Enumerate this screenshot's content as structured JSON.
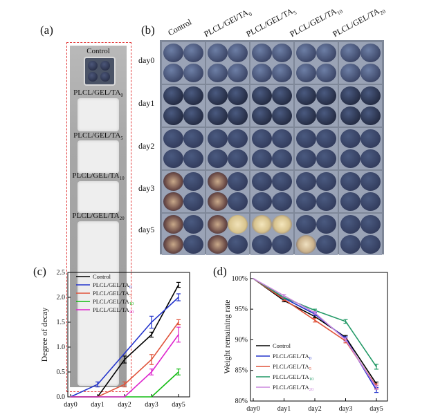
{
  "panel_a": {
    "letter": "(a)",
    "labels": [
      {
        "main": "Control",
        "sub": ""
      },
      {
        "main": "PLCL/GEL/TA",
        "sub": "0"
      },
      {
        "main": "PLCL/GEL/TA",
        "sub": "5"
      },
      {
        "main": "PLCL/GEL/TA",
        "sub": "10"
      },
      {
        "main": "PLCL/GEL/TA",
        "sub": "20"
      }
    ]
  },
  "panel_b": {
    "letter": "(b)",
    "columns": [
      {
        "main": "Control",
        "sub": ""
      },
      {
        "main": "PLCL/GEl/TA",
        "sub": "0"
      },
      {
        "main": "PLCL/GEL/TA",
        "sub": "5"
      },
      {
        "main": "PLCL/GEL/TA",
        "sub": "10"
      },
      {
        "main": "PLCL/GEL/TA",
        "sub": "20"
      }
    ],
    "rows": [
      "day0",
      "day1",
      "day2",
      "day3",
      "day5"
    ]
  },
  "chart_data": [
    {
      "type": "line",
      "panel": "(c)",
      "ylabel": "Degree of decay",
      "categories": [
        "day0",
        "day1",
        "day2",
        "day3",
        "day5"
      ],
      "ylim": [
        0,
        2.5
      ],
      "yticks": [
        "0.0",
        "0.5",
        "1.0",
        "1.5",
        "2.0",
        "2.5"
      ],
      "legend_position": "top-left",
      "series": [
        {
          "name": "Control",
          "sub": "",
          "color": "#000000",
          "values": [
            0,
            0,
            0.75,
            1.25,
            2.25
          ],
          "errors": [
            0,
            0,
            0.07,
            0.05,
            0.05
          ]
        },
        {
          "name": "PLCL/GEL/TA",
          "sub": "0",
          "color": "#2233cc",
          "values": [
            0,
            0.25,
            null,
            1.5,
            2.0
          ],
          "errors": [
            0,
            0.05,
            0,
            0.12,
            0.07
          ]
        },
        {
          "name": "PLCL/GEL/TA",
          "sub": "5",
          "color": "#e0533a",
          "values": [
            0,
            0,
            0.25,
            0.75,
            1.5
          ],
          "errors": [
            0,
            0,
            0.05,
            0.1,
            0.05
          ]
        },
        {
          "name": "PLCL/GEL/TA",
          "sub": "10",
          "color": "#11bb11",
          "values": [
            0,
            0,
            0,
            0,
            0.5
          ],
          "errors": [
            0,
            0,
            0,
            0,
            0.06
          ]
        },
        {
          "name": "PLCL/GEL/TA",
          "sub": "20",
          "color": "#dd22cc",
          "values": [
            0,
            0,
            0,
            0.5,
            1.25
          ],
          "errors": [
            0,
            0,
            0,
            0.06,
            0.15
          ]
        }
      ]
    },
    {
      "type": "line",
      "panel": "(d)",
      "ylabel": "Weight remaining rate",
      "categories": [
        "day0",
        "day1",
        "day2",
        "day3",
        "day5"
      ],
      "ylim": [
        80,
        101
      ],
      "yticks": [
        "80%",
        "85%",
        "90%",
        "95%",
        "100%"
      ],
      "legend_position": "bottom-left",
      "series": [
        {
          "name": "Control",
          "sub": "",
          "color": "#000000",
          "values": [
            100,
            96.4,
            93.8,
            90.4,
            82.8
          ],
          "errors": [
            0,
            0.2,
            0.2,
            0.3,
            0.3
          ]
        },
        {
          "name": "PLCL/GEL/TA",
          "sub": "0",
          "color": "#2233cc",
          "values": [
            100,
            96.8,
            94.2,
            90.2,
            81.8
          ],
          "errors": [
            0,
            0.2,
            0.2,
            0.3,
            0.4
          ]
        },
        {
          "name": "PLCL/GEL/TA",
          "sub": "5",
          "color": "#e0533a",
          "values": [
            100,
            96.6,
            93.2,
            89.8,
            82.4
          ],
          "errors": [
            0,
            0.2,
            0.3,
            0.3,
            0.4
          ]
        },
        {
          "name": "PLCL/GEL/TA",
          "sub": "10",
          "color": "#229966",
          "values": [
            100,
            96.9,
            94.8,
            93.0,
            85.6
          ],
          "errors": [
            0,
            0.2,
            0.2,
            0.3,
            0.4
          ]
        },
        {
          "name": "PLCL/GEL/TA",
          "sub": "20",
          "color": "#cc88dd",
          "values": [
            100,
            97.2,
            94.4,
            90.0,
            82.2
          ],
          "errors": [
            0,
            0.2,
            0.2,
            0.3,
            0.3
          ]
        }
      ]
    }
  ]
}
